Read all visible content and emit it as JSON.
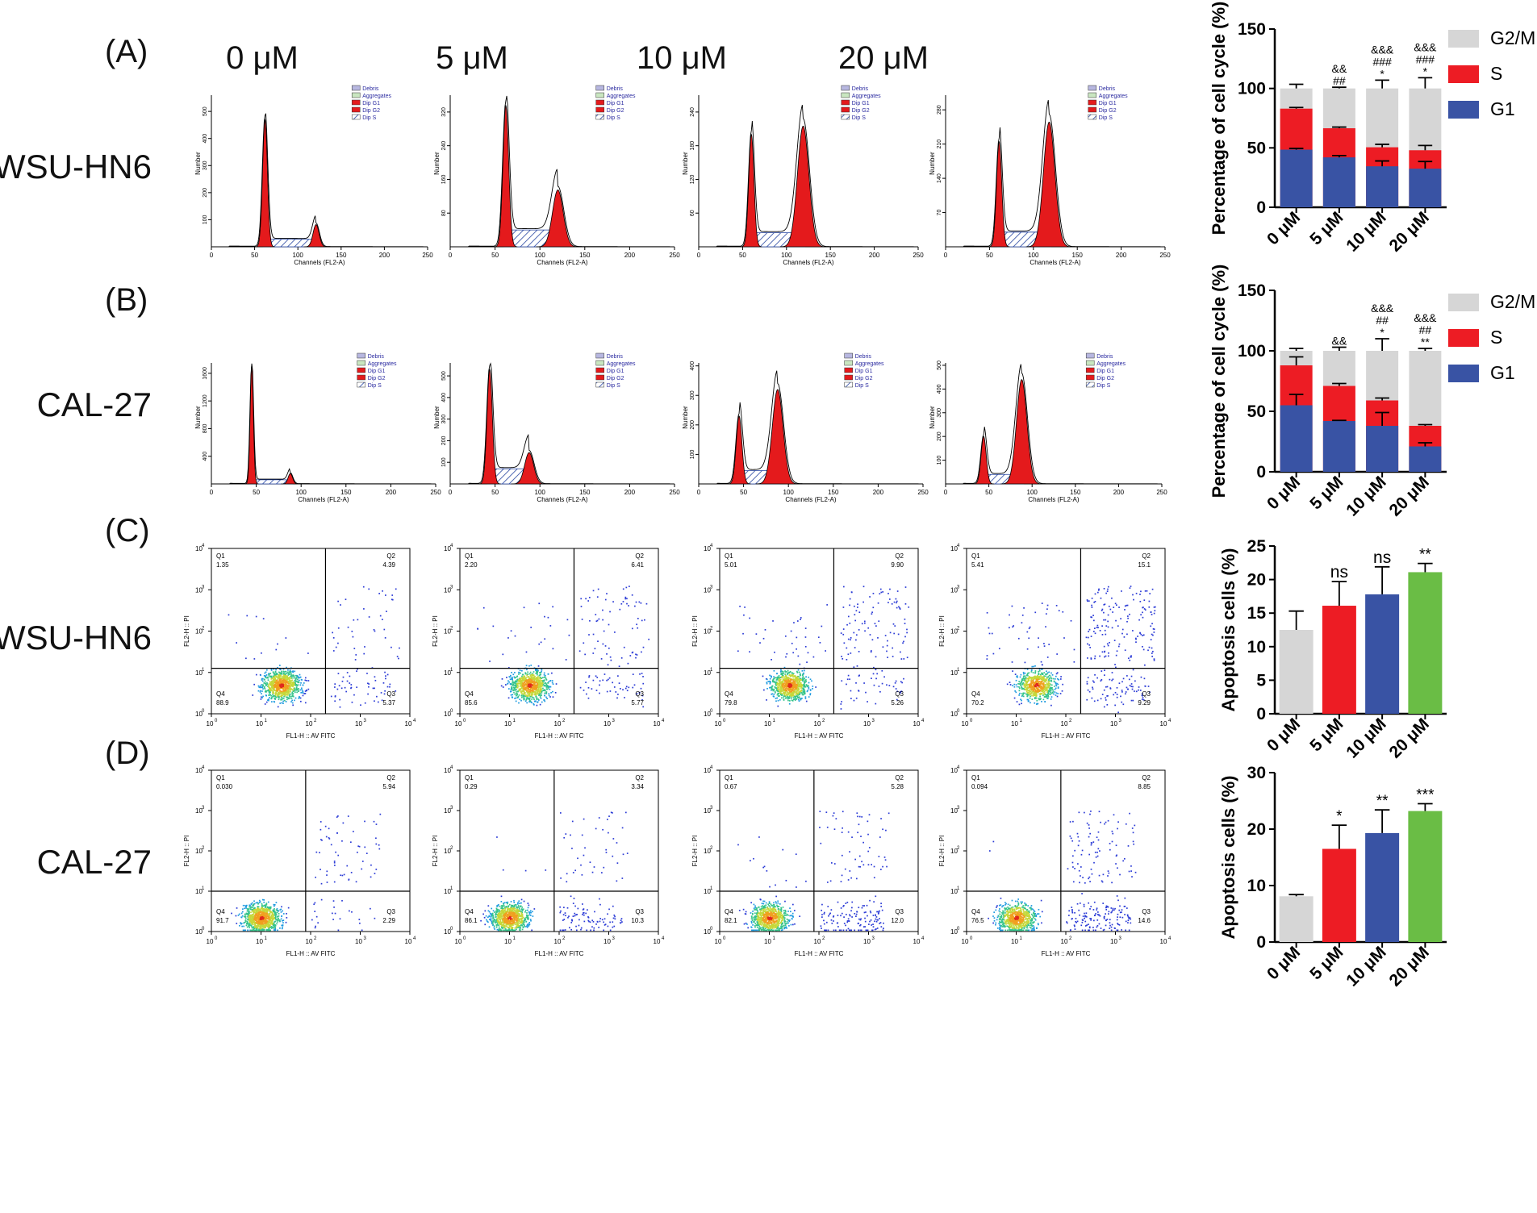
{
  "panel_labels": [
    "(A)",
    "(B)",
    "(C)",
    "(D)"
  ],
  "concentrations": [
    "0 μM",
    "5 μM",
    "10 μM",
    "20 μM"
  ],
  "row_labels": [
    "WSU-HN6",
    "CAL-27",
    "WSU-HN6",
    "CAL-27"
  ],
  "histogram": {
    "xlabel": "Channels (FL2-A)",
    "ylabel": "Number",
    "legend": [
      "Debris",
      "Aggregates",
      "Dip G1",
      "Dip G2",
      "Dip S"
    ],
    "colors": {
      "g1g2": "#e41a1c",
      "s": "#1f3f9e",
      "debris": "#b7b7e0",
      "agg": "#c9e6c0"
    },
    "rows": [
      {
        "xticks": [
          "0",
          "50",
          "100",
          "150",
          "200",
          "250"
        ],
        "plots": [
          {
            "yticks": [
              "100",
              "200",
              "300",
              "400",
              "500"
            ],
            "ymax": 560,
            "g1": 62,
            "g2": 121,
            "g1h": 470,
            "g2h": 82,
            "s": 28,
            "g1w": 2.8,
            "g2w": 3.5
          },
          {
            "yticks": [
              "80",
              "160",
              "240",
              "320"
            ],
            "ymax": 360,
            "g1": 62,
            "g2": 120,
            "g1h": 335,
            "g2h": 135,
            "s": 40,
            "g1w": 3.2,
            "g2w": 6
          },
          {
            "yticks": [
              "60",
              "120",
              "180",
              "240"
            ],
            "ymax": 270,
            "g1": 60,
            "g2": 119,
            "g1h": 200,
            "g2h": 215,
            "s": 25,
            "g1w": 3,
            "g2w": 6.5
          },
          {
            "yticks": [
              "70",
              "140",
              "210",
              "280"
            ],
            "ymax": 310,
            "g1": 61,
            "g2": 118,
            "g1h": 215,
            "g2h": 255,
            "s": 30,
            "g1w": 3,
            "g2w": 6.5
          }
        ]
      },
      {
        "xticks": [
          "0",
          "50",
          "100",
          "150",
          "200",
          "250"
        ],
        "plots": [
          {
            "yticks": [
              "400",
              "800",
              "1200",
              "1600"
            ],
            "ymax": 1750,
            "g1": 45,
            "g2": 88,
            "g1h": 1720,
            "g2h": 150,
            "s": 60,
            "g1w": 1.8,
            "g2w": 2.5
          },
          {
            "yticks": [
              "100",
              "200",
              "300",
              "400",
              "500"
            ],
            "ymax": 560,
            "g1": 44,
            "g2": 88,
            "g1h": 530,
            "g2h": 145,
            "s": 70,
            "g1w": 3,
            "g2w": 5
          },
          {
            "yticks": [
              "100",
              "200",
              "300",
              "400"
            ],
            "ymax": 410,
            "g1": 45,
            "g2": 88,
            "g1h": 230,
            "g2h": 320,
            "s": 45,
            "g1w": 3.2,
            "g2w": 6
          },
          {
            "yticks": [
              "100",
              "200",
              "300",
              "400",
              "500"
            ],
            "ymax": 510,
            "g1": 44,
            "g2": 88,
            "g1h": 200,
            "g2h": 440,
            "s": 40,
            "g1w": 3,
            "g2w": 6
          }
        ]
      }
    ]
  },
  "scatter": {
    "xlabel": "FL1-H :: AV FITC",
    "ylabel": "FL2-H :: PI",
    "decade_labels": [
      "10",
      "0",
      "1",
      "2",
      "3",
      "4"
    ],
    "quadrant_names": [
      "Q1",
      "Q2",
      "Q3",
      "Q4"
    ],
    "rows": [
      {
        "plots": [
          {
            "q1": "1.35",
            "q2": "4.39",
            "q3": "5.37",
            "q4": "88.9",
            "gate_x": 2.3,
            "gate_y": 1.1
          },
          {
            "q1": "2.20",
            "q2": "6.41",
            "q3": "5.77",
            "q4": "85.6",
            "gate_x": 2.3,
            "gate_y": 1.1
          },
          {
            "q1": "5.01",
            "q2": "9.90",
            "q3": "5.26",
            "q4": "79.8",
            "gate_x": 2.3,
            "gate_y": 1.1
          },
          {
            "q1": "5.41",
            "q2": "15.1",
            "q3": "9.29",
            "q4": "70.2",
            "gate_x": 2.3,
            "gate_y": 1.1
          }
        ]
      },
      {
        "plots": [
          {
            "q1": "0.030",
            "q2": "5.94",
            "q3": "2.29",
            "q4": "91.7",
            "gate_x": 1.9,
            "gate_y": 1.0
          },
          {
            "q1": "0.29",
            "q2": "3.34",
            "q3": "10.3",
            "q4": "86.1",
            "gate_x": 1.9,
            "gate_y": 1.0
          },
          {
            "q1": "0.67",
            "q2": "5.28",
            "q3": "12.0",
            "q4": "82.1",
            "gate_x": 1.9,
            "gate_y": 1.0
          },
          {
            "q1": "0.094",
            "q2": "8.85",
            "q3": "14.6",
            "q4": "76.5",
            "gate_x": 1.9,
            "gate_y": 1.0
          }
        ]
      }
    ]
  },
  "chart_data": [
    {
      "type": "bar",
      "stacked": true,
      "panel": "A",
      "categories": [
        "0 μM",
        "5 μM",
        "10 μM",
        "20 μM"
      ],
      "ylabel": "Percentage of cell cycle (%)",
      "ylim": [
        0,
        150
      ],
      "yticks": [
        "0",
        "50",
        "100",
        "150"
      ],
      "series": [
        {
          "name": "G1",
          "color": "#3953a4",
          "values": [
            48.5,
            42,
            34.5,
            32.5
          ],
          "err": [
            1,
            1.5,
            4.5,
            6
          ]
        },
        {
          "name": "S",
          "color": "#ed1c24",
          "values": [
            34.5,
            24.5,
            16,
            15.5
          ],
          "err": [
            1,
            1,
            2.5,
            4
          ]
        },
        {
          "name": "G2/M",
          "color": "#d6d6d6",
          "values": [
            17,
            33.5,
            49.5,
            52
          ],
          "err": [
            3.5,
            1,
            7,
            9
          ]
        }
      ],
      "annotations": [
        [],
        [
          "&&",
          "##"
        ],
        [
          "&&&",
          "###",
          "*"
        ],
        [
          "&&&",
          "###",
          "*"
        ]
      ]
    },
    {
      "type": "bar",
      "stacked": true,
      "panel": "B",
      "categories": [
        "0 μM",
        "5 μM",
        "10 μM",
        "20 μM"
      ],
      "ylabel": "Percentage of cell cycle (%)",
      "ylim": [
        0,
        150
      ],
      "yticks": [
        "0",
        "50",
        "100",
        "150"
      ],
      "series": [
        {
          "name": "G1",
          "color": "#3953a4",
          "values": [
            55,
            42,
            38,
            21
          ],
          "err": [
            9,
            0.5,
            11,
            3
          ]
        },
        {
          "name": "S",
          "color": "#ed1c24",
          "values": [
            33,
            29,
            21,
            17
          ],
          "err": [
            7,
            2,
            2,
            1
          ]
        },
        {
          "name": "G2/M",
          "color": "#d6d6d6",
          "values": [
            12,
            29,
            41,
            62
          ],
          "err": [
            2,
            3,
            10,
            2
          ]
        }
      ],
      "annotations": [
        [],
        [
          "&&"
        ],
        [
          "&&&",
          "##",
          "*"
        ],
        [
          "&&&",
          "##",
          "**"
        ]
      ]
    },
    {
      "type": "bar",
      "panel": "C",
      "categories": [
        "0 μM",
        "5 μM",
        "10 μM",
        "20 μM"
      ],
      "ylabel": "Apoptosis cells (%)",
      "ylim": [
        0,
        25
      ],
      "yticks": [
        "0",
        "5",
        "10",
        "15",
        "20",
        "25"
      ],
      "values": [
        12.5,
        16.1,
        17.8,
        21.1
      ],
      "err": [
        2.8,
        3.6,
        4.1,
        1.3
      ],
      "colors": [
        "#d6d6d6",
        "#ed1c24",
        "#3953a4",
        "#6abd45"
      ],
      "annotations": [
        "",
        "ns",
        "ns",
        "**"
      ]
    },
    {
      "type": "bar",
      "panel": "D",
      "categories": [
        "0 μM",
        "5 μM",
        "10 μM",
        "20 μM"
      ],
      "ylabel": "Apoptosis cells (%)",
      "ylim": [
        0,
        30
      ],
      "yticks": [
        "0",
        "10",
        "20",
        "30"
      ],
      "values": [
        8.1,
        16.5,
        19.3,
        23.2
      ],
      "err": [
        0.3,
        4.2,
        4.1,
        1.3
      ],
      "colors": [
        "#d6d6d6",
        "#ed1c24",
        "#3953a4",
        "#6abd45"
      ],
      "annotations": [
        "",
        "*",
        "**",
        "***"
      ]
    }
  ]
}
